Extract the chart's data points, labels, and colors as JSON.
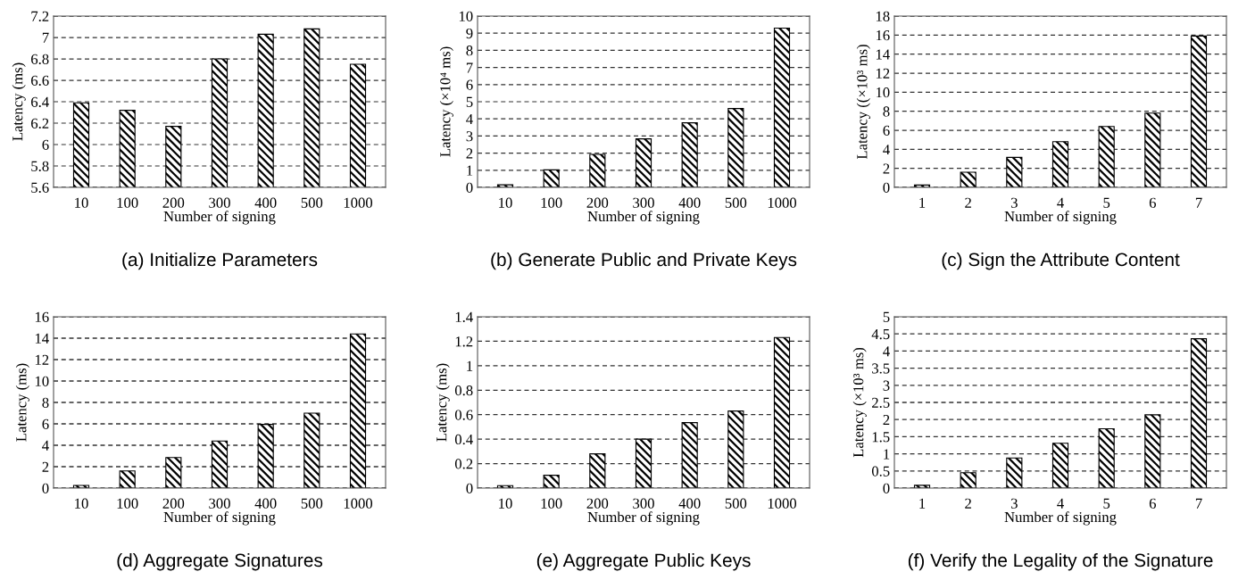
{
  "chart_data": [
    {
      "type": "bar",
      "categories": [
        "10",
        "100",
        "200",
        "300",
        "400",
        "500",
        "1000"
      ],
      "values": [
        6.39,
        6.32,
        6.17,
        6.8,
        7.03,
        7.08,
        6.75
      ],
      "color": "#000000",
      "xlabel": "Number of signing",
      "ylabel": "Latency (ms)",
      "ylim": [
        5.6,
        7.2
      ],
      "yticks": [
        5.6,
        5.8,
        6,
        6.2,
        6.4,
        6.6,
        6.8,
        7,
        7.2
      ],
      "grid": "y",
      "annotations": [
        "(a) Initialize Parameters"
      ]
    },
    {
      "type": "bar",
      "categories": [
        "10",
        "100",
        "200",
        "300",
        "400",
        "500",
        "1000"
      ],
      "values": [
        0.15,
        1.02,
        1.93,
        2.83,
        3.77,
        4.6,
        9.3
      ],
      "color": "#000000",
      "xlabel": "Number of signing",
      "ylabel": "Latency (×10⁴ ms)",
      "ylim": [
        0,
        10
      ],
      "yticks": [
        0,
        1,
        2,
        3,
        4,
        5,
        6,
        7,
        8,
        9,
        10
      ],
      "grid": "y",
      "annotations": [
        "(b) Generate Public and Private Keys"
      ]
    },
    {
      "type": "bar",
      "categories": [
        "1",
        "2",
        "3",
        "4",
        "5",
        "6",
        "7"
      ],
      "values": [
        0.25,
        1.6,
        3.15,
        4.8,
        6.4,
        7.8,
        15.9
      ],
      "color": "#000000",
      "xlabel": "Number of signing",
      "ylabel": "Latency ((×10³ ms)",
      "ylim": [
        0,
        18
      ],
      "yticks": [
        0,
        2,
        4,
        6,
        8,
        10,
        12,
        14,
        16,
        18
      ],
      "grid": "y",
      "annotations": [
        "(c) Sign the Attribute Content"
      ]
    },
    {
      "type": "bar",
      "categories": [
        "10",
        "100",
        "200",
        "300",
        "400",
        "500",
        "1000"
      ],
      "values": [
        0.25,
        1.6,
        2.85,
        4.4,
        5.95,
        7.0,
        14.4
      ],
      "color": "#000000",
      "xlabel": "Number of signing",
      "ylabel": "Latency (ms)",
      "ylim": [
        0,
        16
      ],
      "yticks": [
        0,
        2,
        4,
        6,
        8,
        10,
        12,
        14,
        16
      ],
      "grid": "y",
      "annotations": [
        "(d) Aggregate Signatures"
      ]
    },
    {
      "type": "bar",
      "categories": [
        "10",
        "100",
        "200",
        "300",
        "400",
        "500",
        "1000"
      ],
      "values": [
        0.02,
        0.105,
        0.28,
        0.4,
        0.535,
        0.63,
        1.23
      ],
      "color": "#000000",
      "xlabel": "Number of signing",
      "ylabel": "Latency (ms)",
      "ylim": [
        0,
        1.4
      ],
      "yticks": [
        0,
        0.2,
        0.4,
        0.6,
        0.8,
        1,
        1.2,
        1.4
      ],
      "grid": "y",
      "annotations": [
        "(e) Aggregate Public Keys"
      ]
    },
    {
      "type": "bar",
      "categories": [
        "1",
        "2",
        "3",
        "4",
        "5",
        "6",
        "7"
      ],
      "values": [
        0.08,
        0.45,
        0.88,
        1.31,
        1.73,
        2.14,
        4.36
      ],
      "color": "#000000",
      "xlabel": "Number of signing",
      "ylabel": "Latency (×10³ ms)",
      "ylim": [
        0,
        5
      ],
      "yticks": [
        0,
        0.5,
        1,
        1.5,
        2,
        2.5,
        3,
        3.5,
        4,
        4.5,
        5
      ],
      "grid": "y",
      "annotations": [
        "(f) Verify the Legality of the Signature"
      ]
    }
  ]
}
